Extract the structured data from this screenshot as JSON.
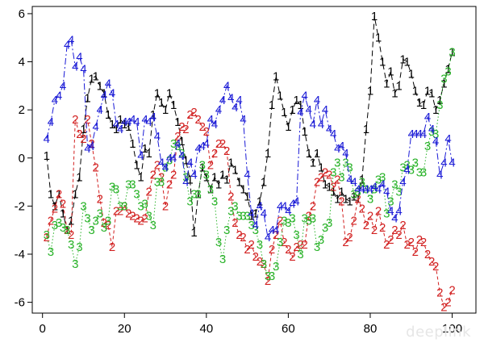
{
  "watermark": "deeplink",
  "chart_data": {
    "type": "line",
    "title": "",
    "xlabel": "",
    "ylabel": "",
    "xlim": [
      0,
      100
    ],
    "ylim": [
      -6,
      6
    ],
    "x_ticks": [
      0,
      20,
      40,
      60,
      80,
      100
    ],
    "x_tick_labels": [
      "0",
      "20",
      "40",
      "60",
      "80",
      "100"
    ],
    "y_ticks": [
      -6,
      -4,
      -2,
      0,
      2,
      4,
      6
    ],
    "y_tick_labels": [
      "-6",
      "-4",
      "-2",
      "0",
      "2",
      "4",
      "6"
    ],
    "grid": false,
    "legend": "none",
    "x": [
      1,
      2,
      3,
      4,
      5,
      6,
      7,
      8,
      9,
      10,
      11,
      12,
      13,
      14,
      15,
      16,
      17,
      18,
      19,
      20,
      21,
      22,
      23,
      24,
      25,
      26,
      27,
      28,
      29,
      30,
      31,
      32,
      33,
      34,
      35,
      36,
      37,
      38,
      39,
      40,
      41,
      42,
      43,
      44,
      45,
      46,
      47,
      48,
      49,
      50,
      51,
      52,
      53,
      54,
      55,
      56,
      57,
      58,
      59,
      60,
      61,
      62,
      63,
      64,
      65,
      66,
      67,
      68,
      69,
      70,
      71,
      72,
      73,
      74,
      75,
      76,
      77,
      78,
      79,
      80,
      81,
      82,
      83,
      84,
      85,
      86,
      87,
      88,
      89,
      90,
      91,
      92,
      93,
      94,
      95,
      96,
      97,
      98,
      99,
      100
    ],
    "series": [
      {
        "name": "1",
        "color": "#000000",
        "dash": "7,4",
        "values": [
          0.1,
          -1.5,
          -2.0,
          -1.5,
          -2.3,
          -3.0,
          -2.6,
          -1.5,
          -0.8,
          1.2,
          2.5,
          3.3,
          3.4,
          3.0,
          2.7,
          1.8,
          1.4,
          1.2,
          1.6,
          1.4,
          1.3,
          0.6,
          -0.3,
          -0.8,
          0.4,
          0.2,
          1.8,
          2.7,
          2.3,
          2.0,
          2.7,
          2.2,
          1.5,
          0.7,
          -0.1,
          -0.9,
          -3.1,
          -1.5,
          -0.4,
          -0.8,
          -1.3,
          -0.8,
          -1.1,
          -0.7,
          -0.9,
          -0.2,
          -0.5,
          -1.0,
          -1.3,
          -1.6,
          -2.4,
          -2.3,
          -1.8,
          -1.0,
          0.2,
          2.2,
          3.4,
          2.6,
          1.9,
          1.3,
          2.0,
          2.4,
          2.2,
          1.1,
          0.2,
          -0.2,
          0.2,
          -0.4,
          -1.1,
          -1.2,
          -1.4,
          -1.7,
          -1.4,
          -1.7,
          -1.8,
          -1.6,
          -1.7,
          -0.9,
          1.2,
          2.8,
          5.9,
          5.0,
          4.0,
          3.1,
          3.6,
          2.7,
          3.0,
          4.1,
          4.0,
          3.5,
          2.8,
          2.3,
          2.2,
          2.8,
          2.7,
          2.0,
          2.4,
          3.1,
          3.7,
          4.4
        ]
      },
      {
        "name": "2",
        "color": "#d22020",
        "dash": "4,3",
        "values": [
          -3.3,
          -2.6,
          -2.1,
          -1.5,
          -1.9,
          -3.0,
          -3.2,
          1.6,
          1.0,
          0.8,
          1.6,
          0.6,
          -0.4,
          -1.7,
          -2.7,
          -2.8,
          -3.7,
          -2.2,
          -2.2,
          -2.0,
          -2.3,
          -2.4,
          -2.5,
          -2.6,
          -2.5,
          -1.4,
          -0.7,
          -0.3,
          -0.8,
          -2.0,
          -1.1,
          -0.7,
          0.9,
          1.3,
          1.2,
          1.8,
          1.9,
          1.6,
          1.3,
          1.1,
          -0.3,
          0.2,
          0.6,
          0.6,
          0.3,
          -1.6,
          -2.7,
          -3.2,
          -3.3,
          -3.8,
          -3.6,
          -4.1,
          -4.3,
          -4.4,
          -5.1,
          -3.8,
          -3.2,
          -2.6,
          -3.5,
          -3.8,
          -4.1,
          -3.7,
          -3.6,
          -3.6,
          -2.4,
          -2.0,
          -1.0,
          -0.8,
          -0.6,
          -0.7,
          -1.2,
          -0.9,
          -1.8,
          -3.5,
          -3.3,
          -2.6,
          -1.7,
          -2.1,
          -2.8,
          -2.4,
          -3.0,
          -2.2,
          -2.9,
          -3.6,
          -3.4,
          -3.0,
          -3.2,
          -2.8,
          -3.6,
          -3.5,
          -3.9,
          -3.4,
          -3.5,
          -4.0,
          -4.3,
          -4.5,
          -5.6,
          -6.2,
          -6.0,
          -5.5
        ]
      },
      {
        "name": "3",
        "color": "#2ab32a",
        "dash": "1.5,2.5",
        "values": [
          -3.2,
          -3.9,
          -2.8,
          -2.7,
          -2.9,
          -3.0,
          -3.6,
          -4.4,
          -3.7,
          -2.0,
          -2.5,
          -3.0,
          -2.6,
          -2.3,
          -2.9,
          -2.6,
          -1.2,
          -1.3,
          -2.0,
          -2.0,
          -1.1,
          -1.1,
          -1.5,
          -2.0,
          -1.9,
          -2.4,
          -2.8,
          -1.0,
          -1.0,
          -0.4,
          -0.1,
          0.6,
          0.5,
          0.2,
          -0.8,
          -1.8,
          -1.5,
          -1.5,
          -0.3,
          -0.7,
          -1.3,
          -1.8,
          -3.5,
          -4.2,
          -3.0,
          -2.2,
          -2.0,
          -2.4,
          -2.4,
          -2.4,
          -2.8,
          -3.0,
          -3.6,
          -4.4,
          -4.9,
          -4.9,
          -4.5,
          -3.5,
          -2.6,
          -2.7,
          -2.5,
          -3.2,
          -4.0,
          -2.5,
          -2.6,
          -2.5,
          -3.7,
          -3.4,
          -2.9,
          -2.7,
          -0.6,
          -0.2,
          -0.8,
          -0.2,
          -0.4,
          -1.5,
          -1.4,
          -1.0,
          -1.3,
          -1.7,
          -1.3,
          -0.9,
          -0.8,
          -2.3,
          -1.8,
          -1.1,
          -1.4,
          -0.4,
          -0.3,
          -0.5,
          -0.2,
          -0.6,
          -0.6,
          0.5,
          1.1,
          1.0,
          2.2,
          3.3,
          3.6,
          4.4
        ]
      },
      {
        "name": "4",
        "color": "#1a1ad6",
        "dash": "8,3,2,3",
        "values": [
          0.8,
          1.5,
          2.4,
          2.6,
          3.0,
          4.7,
          4.9,
          3.8,
          4.2,
          3.7,
          0.4,
          0.5,
          1.3,
          2.0,
          2.6,
          3.1,
          2.7,
          1.4,
          1.2,
          1.5,
          1.5,
          1.6,
          1.5,
          0.1,
          1.6,
          1.5,
          1.7,
          0.9,
          -0.2,
          -0.4,
          0.0,
          0.0,
          0.6,
          0.1,
          -1.0,
          -0.2,
          -0.7,
          0.4,
          0.5,
          0.6,
          1.6,
          1.4,
          2.0,
          2.4,
          3.0,
          2.5,
          2.1,
          2.4,
          1.6,
          -0.7,
          -2.3,
          -2.8,
          -2.0,
          -2.3,
          -3.3,
          -3.0,
          -3.0,
          -2.0,
          -2.0,
          -2.2,
          -1.9,
          -1.8,
          1.9,
          2.6,
          2.0,
          1.4,
          2.4,
          1.4,
          2.0,
          1.2,
          1.0,
          0.4,
          0.5,
          0.2,
          -0.9,
          -1.0,
          -1.3,
          -1.3,
          -1.3,
          -1.3,
          -1.2,
          -1.3,
          -1.1,
          -1.4,
          -2.2,
          -2.5,
          -2.2,
          -1.0,
          -0.5,
          1.0,
          1.0,
          1.0,
          1.0,
          1.7,
          1.2,
          0.7,
          -0.7,
          -0.2,
          0.8,
          -0.2
        ]
      }
    ]
  }
}
